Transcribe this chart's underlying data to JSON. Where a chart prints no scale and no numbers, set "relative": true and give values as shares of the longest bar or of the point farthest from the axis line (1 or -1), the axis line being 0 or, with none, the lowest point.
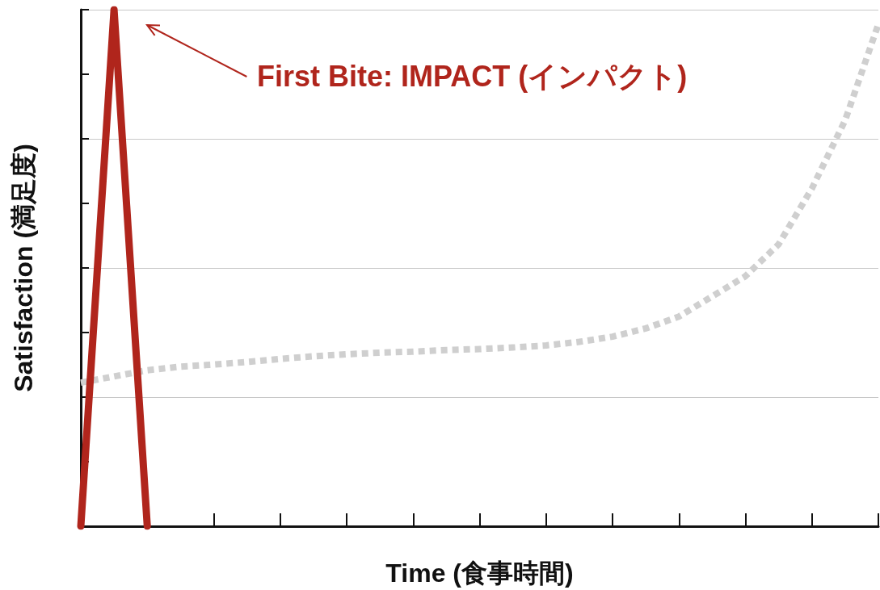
{
  "chart_data": {
    "type": "line",
    "relative": true,
    "xlabel": "Time (食事時間)",
    "ylabel": "Satisfaction (満足度)",
    "annotations": [
      "First Bite: IMPACT (インパクト)"
    ],
    "categories": [
      null,
      null,
      null,
      null,
      null,
      null,
      null,
      null,
      null,
      null,
      null,
      null,
      null,
      null,
      null,
      null,
      null,
      null,
      null,
      null,
      null,
      null,
      null,
      null,
      null
    ],
    "series": [
      {
        "color": "#b0251c",
        "line_style": "solid",
        "values": [
          0,
          1,
          0,
          null,
          null,
          null,
          null,
          null,
          null,
          null,
          null,
          null,
          null,
          null,
          null,
          null,
          null,
          null,
          null,
          null,
          null,
          null,
          null,
          null,
          null
        ]
      },
      {
        "color": "#cfcfcf",
        "line_style": "dotted",
        "values": [
          0.278,
          0.29,
          0.302,
          0.309,
          0.313,
          0.318,
          0.324,
          0.329,
          0.333,
          0.336,
          0.338,
          0.341,
          0.343,
          0.346,
          0.35,
          0.357,
          0.367,
          0.383,
          0.406,
          0.445,
          0.484,
          0.546,
          0.654,
          0.786,
          0.972
        ]
      }
    ],
    "grid": "y",
    "marker": "none"
  }
}
